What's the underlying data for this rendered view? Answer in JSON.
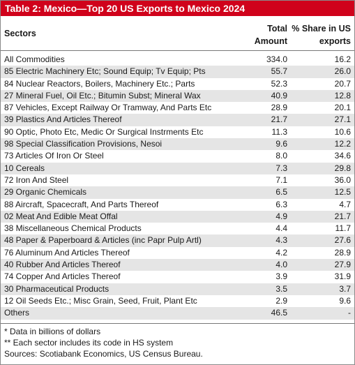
{
  "table": {
    "title": "Table 2: Mexico—Top 20 US Exports to Mexico 2024",
    "headers": {
      "sectors": "Sectors",
      "amount_line1": "Total",
      "amount_line2": "Amount",
      "share_line1": "% Share in US",
      "share_line2": "exports"
    },
    "rows": [
      {
        "sector": "All Commodities",
        "amount": "334.0",
        "share": "16.2"
      },
      {
        "sector": "85 Electric Machinery Etc; Sound Equip; Tv Equip; Pts",
        "amount": "55.7",
        "share": "26.0"
      },
      {
        "sector": "84 Nuclear Reactors, Boilers, Machinery Etc.; Parts",
        "amount": "52.3",
        "share": "20.7"
      },
      {
        "sector": "27 Mineral Fuel, Oil Etc.; Bitumin Subst; Mineral Wax",
        "amount": "40.9",
        "share": "12.8"
      },
      {
        "sector": "87 Vehicles, Except Railway Or Tramway, And Parts Etc",
        "amount": "28.9",
        "share": "20.1"
      },
      {
        "sector": "39 Plastics And Articles Thereof",
        "amount": "21.7",
        "share": "27.1"
      },
      {
        "sector": "90 Optic, Photo Etc, Medic Or Surgical Instrments Etc",
        "amount": "11.3",
        "share": "10.6"
      },
      {
        "sector": "98 Special Classification Provisions, Nesoi",
        "amount": "9.6",
        "share": "12.2"
      },
      {
        "sector": "73 Articles Of Iron Or Steel",
        "amount": "8.0",
        "share": "34.6"
      },
      {
        "sector": "10 Cereals",
        "amount": "7.3",
        "share": "29.8"
      },
      {
        "sector": "72 Iron And Steel",
        "amount": "7.1",
        "share": "36.0"
      },
      {
        "sector": "29 Organic Chemicals",
        "amount": "6.5",
        "share": "12.5"
      },
      {
        "sector": "88 Aircraft, Spacecraft, And Parts Thereof",
        "amount": "6.3",
        "share": "4.7"
      },
      {
        "sector": "02 Meat And Edible Meat Offal",
        "amount": "4.9",
        "share": "21.7"
      },
      {
        "sector": "38 Miscellaneous Chemical Products",
        "amount": "4.4",
        "share": "11.7"
      },
      {
        "sector": "48 Paper & Paperboard & Articles (inc Papr Pulp Artl)",
        "amount": "4.3",
        "share": "27.6"
      },
      {
        "sector": "76 Aluminum And Articles Thereof",
        "amount": "4.2",
        "share": "28.9"
      },
      {
        "sector": "40 Rubber And Articles Thereof",
        "amount": "4.0",
        "share": "27.9"
      },
      {
        "sector": "74 Copper And Articles Thereof",
        "amount": "3.9",
        "share": "31.9"
      },
      {
        "sector": "30 Pharmaceutical Products",
        "amount": "3.5",
        "share": "3.7"
      },
      {
        "sector": "12 Oil Seeds Etc.; Misc Grain, Seed, Fruit, Plant Etc",
        "amount": "2.9",
        "share": "9.6"
      },
      {
        "sector": "Others",
        "amount": "46.5",
        "share": "-"
      }
    ],
    "notes": [
      "* Data in billions of dollars",
      "** Each sector includes its code in HS system",
      "Sources: Scotiabank Economics, US Census Bureau."
    ],
    "colors": {
      "title_background": "#d0021b",
      "title_text": "#ffffff",
      "stripe": "#e5e5e5"
    }
  }
}
